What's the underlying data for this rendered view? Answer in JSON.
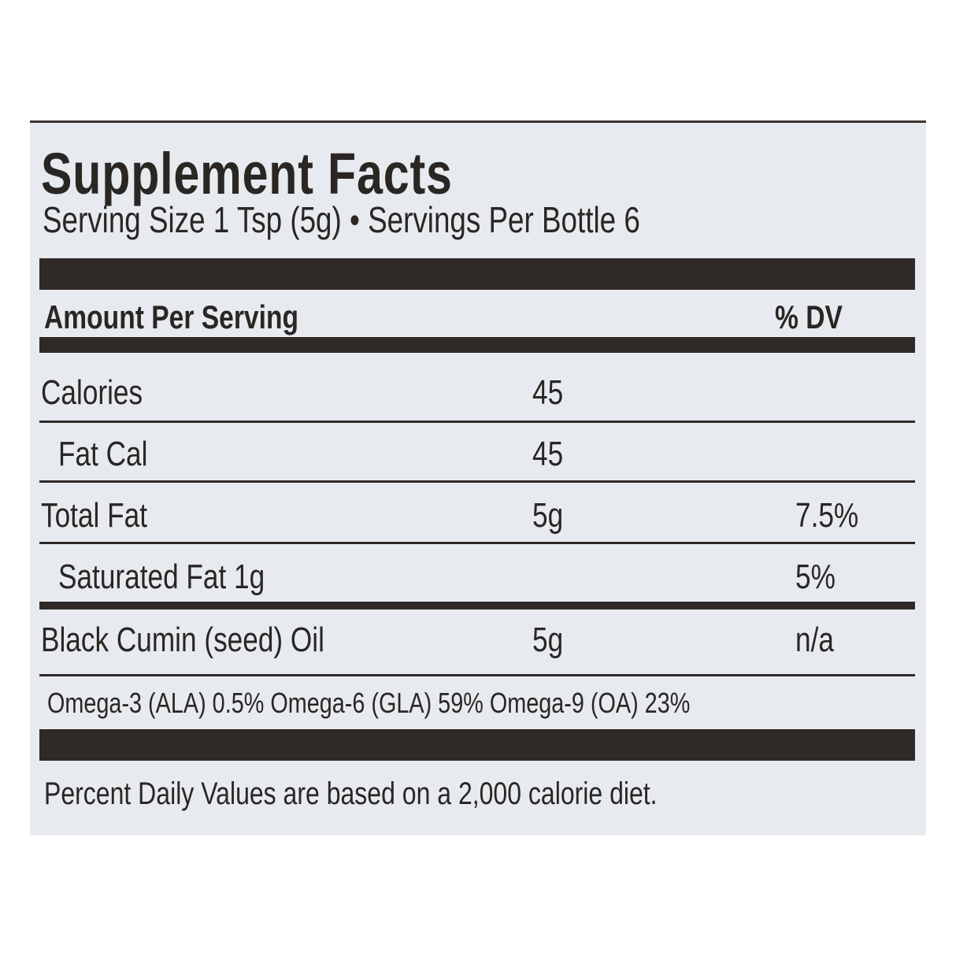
{
  "title": "Supplement Facts",
  "serving_line": "Serving Size 1 Tsp (5g) • Servings Per Bottle  6",
  "header": {
    "amount_label": "Amount Per Serving",
    "dv_label": "% DV"
  },
  "rows": [
    {
      "name": "Calories",
      "amount": "45",
      "dv": ""
    },
    {
      "name": "Fat Cal",
      "amount": "45",
      "dv": ""
    },
    {
      "name": "Total Fat",
      "amount": "5g",
      "dv": "7.5%"
    },
    {
      "name": "Saturated Fat  1g",
      "amount": "",
      "dv": "5%"
    },
    {
      "name": "Black Cumin (seed) Oil",
      "amount": "5g",
      "dv": "n/a"
    }
  ],
  "omega_line": "Omega-3 (ALA) 0.5% Omega-6 (GLA) 59% Omega-9 (OA) 23%",
  "footnote": "Percent Daily Values are based on a 2,000 calorie diet."
}
